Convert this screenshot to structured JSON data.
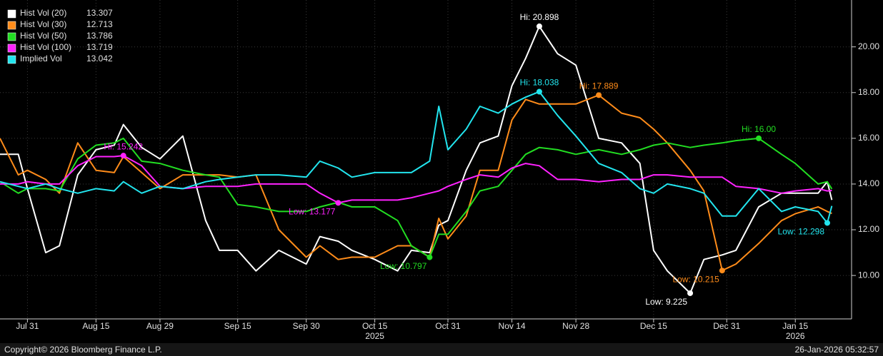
{
  "chart_data": {
    "type": "line",
    "x": [
      "2025-07-25",
      "2025-07-29",
      "2025-07-31",
      "2025-08-04",
      "2025-08-07",
      "2025-08-11",
      "2025-08-15",
      "2025-08-19",
      "2025-08-21",
      "2025-08-25",
      "2025-08-29",
      "2025-09-03",
      "2025-09-08",
      "2025-09-11",
      "2025-09-15",
      "2025-09-19",
      "2025-09-24",
      "2025-09-30",
      "2025-10-03",
      "2025-10-07",
      "2025-10-10",
      "2025-10-15",
      "2025-10-20",
      "2025-10-23",
      "2025-10-27",
      "2025-10-29",
      "2025-10-31",
      "2025-11-04",
      "2025-11-07",
      "2025-11-11",
      "2025-11-14",
      "2025-11-17",
      "2025-11-20",
      "2025-11-24",
      "2025-11-28",
      "2025-12-03",
      "2025-12-08",
      "2025-12-12",
      "2025-12-15",
      "2025-12-18",
      "2025-12-23",
      "2025-12-26",
      "2025-12-30",
      "2026-01-02",
      "2026-01-07",
      "2026-01-12",
      "2026-01-15",
      "2026-01-20",
      "2026-01-22",
      "2026-01-23"
    ],
    "series": [
      {
        "name": "Hist Vol (20)",
        "last": 13.307,
        "color": "#ffffff",
        "values": [
          15.3,
          15.3,
          13.8,
          11.0,
          11.3,
          14.4,
          15.5,
          15.7,
          16.6,
          15.6,
          15.1,
          16.1,
          12.4,
          11.1,
          11.1,
          10.2,
          11.1,
          10.5,
          11.7,
          11.5,
          11.1,
          10.7,
          10.2,
          11.1,
          11.0,
          12.2,
          12.4,
          14.6,
          15.8,
          16.1,
          18.3,
          19.5,
          20.898,
          19.7,
          19.2,
          16.0,
          15.8,
          14.9,
          11.1,
          10.2,
          9.225,
          10.7,
          10.9,
          11.1,
          13.0,
          13.6,
          13.6,
          13.6,
          14.1,
          13.307
        ]
      },
      {
        "name": "Hist Vol (30)",
        "last": 12.713,
        "color": "#ff8c1a",
        "values": [
          16.0,
          14.4,
          14.6,
          14.2,
          13.6,
          15.8,
          14.6,
          14.5,
          15.2,
          14.5,
          13.8,
          14.4,
          14.4,
          14.4,
          14.3,
          14.4,
          12.0,
          10.8,
          11.3,
          10.7,
          10.8,
          10.8,
          11.3,
          11.3,
          10.8,
          12.5,
          11.6,
          12.6,
          14.6,
          14.6,
          16.8,
          17.7,
          17.5,
          17.5,
          17.5,
          17.889,
          17.1,
          16.9,
          16.4,
          15.8,
          14.6,
          13.7,
          10.215,
          10.5,
          11.4,
          12.4,
          12.7,
          13.0,
          12.8,
          12.713
        ]
      },
      {
        "name": "Hist Vol (50)",
        "last": 13.786,
        "color": "#22dd22",
        "values": [
          14.1,
          13.6,
          13.8,
          13.8,
          13.7,
          15.1,
          15.7,
          15.8,
          16.0,
          15.0,
          14.9,
          14.6,
          14.4,
          14.3,
          13.1,
          13.0,
          12.8,
          12.8,
          13.0,
          13.2,
          13.0,
          13.0,
          12.4,
          11.3,
          10.797,
          11.8,
          11.8,
          12.8,
          13.7,
          13.9,
          14.6,
          15.3,
          15.6,
          15.5,
          15.3,
          15.5,
          15.3,
          15.5,
          15.7,
          15.8,
          15.6,
          15.7,
          15.8,
          15.9,
          16.0,
          15.3,
          14.9,
          14.0,
          14.1,
          13.786
        ]
      },
      {
        "name": "Hist Vol (100)",
        "last": 13.719,
        "color": "#ff22ff",
        "values": [
          14.0,
          14.0,
          14.1,
          14.0,
          14.0,
          14.8,
          15.2,
          15.2,
          15.242,
          14.8,
          13.9,
          13.8,
          13.9,
          13.9,
          13.9,
          14.0,
          14.0,
          14.0,
          13.6,
          13.177,
          13.3,
          13.3,
          13.3,
          13.4,
          13.6,
          13.7,
          13.9,
          14.2,
          14.4,
          14.3,
          14.7,
          14.9,
          14.8,
          14.2,
          14.2,
          14.1,
          14.2,
          14.2,
          14.4,
          14.4,
          14.3,
          14.3,
          14.3,
          13.9,
          13.8,
          13.6,
          13.7,
          13.8,
          13.7,
          13.719
        ]
      },
      {
        "name": "Implied Vol",
        "last": 13.042,
        "color": "#22e5ee",
        "values": [
          14.1,
          13.9,
          13.8,
          14.0,
          13.8,
          13.6,
          13.8,
          13.7,
          14.1,
          13.6,
          13.9,
          13.8,
          14.1,
          14.2,
          14.3,
          14.4,
          14.4,
          14.3,
          15.0,
          14.7,
          14.3,
          14.5,
          14.5,
          14.5,
          15.0,
          17.4,
          15.5,
          16.4,
          17.4,
          17.1,
          17.5,
          17.8,
          18.038,
          17.0,
          16.1,
          14.9,
          14.5,
          13.8,
          13.6,
          14.0,
          13.8,
          13.6,
          12.6,
          12.6,
          13.8,
          12.8,
          13.0,
          12.8,
          12.298,
          13.042
        ]
      }
    ],
    "annotations": [
      {
        "text": "Hi: 20.898",
        "series": "Hist Vol (20)",
        "x": "2025-11-20",
        "value": 20.898
      },
      {
        "text": "Low: 9.225",
        "series": "Hist Vol (20)",
        "x": "2025-12-23",
        "value": 9.225
      },
      {
        "text": "Hi: 17.889",
        "series": "Hist Vol (30)",
        "x": "2025-12-03",
        "value": 17.889
      },
      {
        "text": "Low: 10.215",
        "series": "Hist Vol (30)",
        "x": "2025-12-30",
        "value": 10.215
      },
      {
        "text": "Hi: 16.00",
        "series": "Hist Vol (50)",
        "x": "2026-01-07",
        "value": 16.0
      },
      {
        "text": "Low: 10.797",
        "series": "Hist Vol (50)",
        "x": "2025-10-27",
        "value": 10.797
      },
      {
        "text": "Hi: 15.242",
        "series": "Hist Vol (100)",
        "x": "2025-08-21",
        "value": 15.242
      },
      {
        "text": "Low: 13.177",
        "series": "Hist Vol (100)",
        "x": "2025-10-07",
        "value": 13.177
      },
      {
        "text": "Hi: 18.038",
        "series": "Implied Vol",
        "x": "2025-11-20",
        "value": 18.038
      },
      {
        "text": "Low: 12.298",
        "series": "Implied Vol",
        "x": "2026-01-22",
        "value": 12.298
      }
    ],
    "xlim": [
      "2025-07-25",
      "2026-01-27"
    ],
    "xticks": [
      {
        "value": "2025-07-31",
        "label": "Jul 31"
      },
      {
        "value": "2025-08-15",
        "label": "Aug 15"
      },
      {
        "value": "2025-08-29",
        "label": "Aug 29"
      },
      {
        "value": "2025-09-15",
        "label": "Sep 15"
      },
      {
        "value": "2025-09-30",
        "label": "Sep 30"
      },
      {
        "value": "2025-10-15",
        "label": "Oct 15"
      },
      {
        "value": "2025-10-31",
        "label": "Oct 31"
      },
      {
        "value": "2025-11-14",
        "label": "Nov 14"
      },
      {
        "value": "2025-11-28",
        "label": "Nov 28"
      },
      {
        "value": "2025-12-15",
        "label": "Dec 15"
      },
      {
        "value": "2025-12-31",
        "label": "Dec 31"
      },
      {
        "value": "2026-01-15",
        "label": "Jan 15"
      }
    ],
    "x_year_labels": [
      {
        "value": "2025-10-15",
        "label": "2025"
      },
      {
        "value": "2026-01-15",
        "label": "2026"
      }
    ],
    "ylim": [
      8.1,
      22.05
    ],
    "yticks": [
      {
        "value": 10,
        "label": "10.00"
      },
      {
        "value": 12,
        "label": "12.00"
      },
      {
        "value": 14,
        "label": "14.00"
      },
      {
        "value": 16,
        "label": "16.00"
      },
      {
        "value": 18,
        "label": "18.00"
      },
      {
        "value": 20,
        "label": "20.00"
      }
    ],
    "grid": true,
    "legend": "top-left",
    "footer_left": "Copyright© 2026 Bloomberg Finance L.P.",
    "footer_right": "26-Jan-2026 05:32:57"
  }
}
